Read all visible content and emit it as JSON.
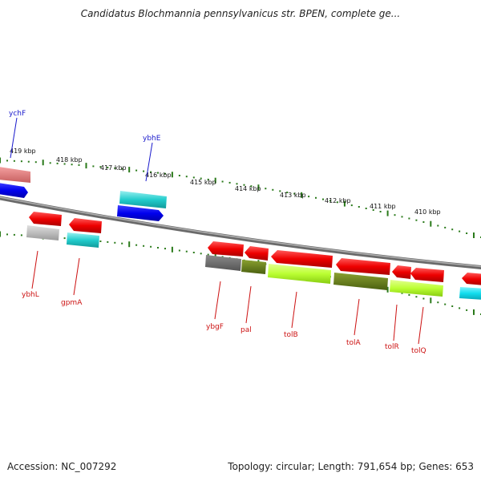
{
  "title": "Candidatus Blochmannia pennsylvanicus str. BPEN, complete ge...",
  "footer": {
    "accession": "Accession: NC_007292",
    "summary": "Topology: circular; Length: 791,654 bp; Genes: 653"
  },
  "ruler_labels": [
    "419 kbp",
    "418 kbp",
    "417 kbp",
    "416 kbp",
    "415 kbp",
    "414 kbp",
    "413 kbp",
    "412 kbp",
    "411 kbp",
    "410 kbp"
  ],
  "gene_labels": {
    "ychF": "ychF",
    "ybhE": "ybhE",
    "ybhL": "ybhL",
    "gpmA": "gpmA",
    "ybgF": "ybgF",
    "pal": "pal",
    "tolB": "tolB",
    "tolA": "tolA",
    "tolR": "tolR",
    "tolQ": "tolQ"
  },
  "colors": {
    "forward_label": "#1a1acc",
    "reverse_label": "#cc1111",
    "tick": "#2a7a1a",
    "backbone": "#808080"
  }
}
